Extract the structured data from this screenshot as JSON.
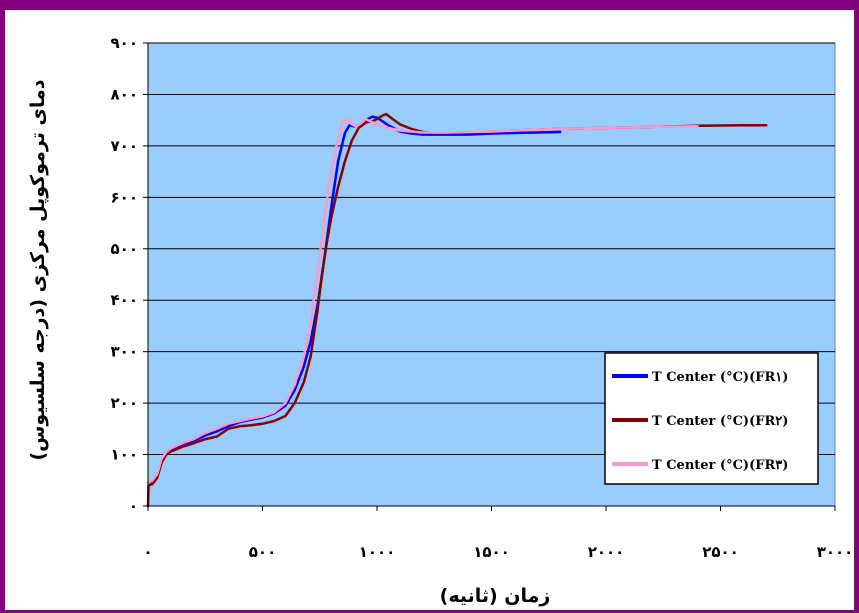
{
  "chart_data": {
    "type": "line",
    "xlabel": "زمان (ثانیه)",
    "ylabel": "دمای ترموکوپل مرکزی (درجه سلسیوس)",
    "xlim": [
      0,
      3000
    ],
    "ylim": [
      0,
      900
    ],
    "x_ticks": [
      0,
      500,
      1000,
      1500,
      2000,
      2500,
      3000
    ],
    "y_ticks": [
      0,
      100,
      200,
      300,
      400,
      500,
      600,
      700,
      800,
      900
    ],
    "x_tick_labels": [
      "۰",
      "۵۰۰",
      "۱۰۰۰",
      "۱۵۰۰",
      "۲۰۰۰",
      "۲۵۰۰",
      "۳۰۰۰"
    ],
    "y_tick_labels": [
      "۰",
      "۱۰۰",
      "۲۰۰",
      "۳۰۰",
      "۴۰۰",
      "۵۰۰",
      "۶۰۰",
      "۷۰۰",
      "۸۰۰",
      "۹۰۰"
    ],
    "grid": "horizontal",
    "legend_position": "bottom-right",
    "plot_background": "#99CCFF",
    "series": [
      {
        "name": "T Center (°C)(FR۱)",
        "color": "#0000FF",
        "x": [
          0,
          20,
          40,
          60,
          80,
          100,
          150,
          200,
          250,
          300,
          350,
          400,
          450,
          500,
          550,
          600,
          640,
          680,
          710,
          740,
          770,
          800,
          830,
          860,
          880,
          900,
          920,
          940,
          960,
          980,
          1000,
          1050,
          1100,
          1150,
          1200,
          1300,
          1400,
          1500,
          1600,
          1800
        ],
        "y": [
          45,
          48,
          60,
          90,
          105,
          110,
          120,
          127,
          137,
          145,
          155,
          163,
          168,
          172,
          180,
          195,
          225,
          270,
          320,
          390,
          480,
          580,
          670,
          725,
          740,
          738,
          740,
          745,
          752,
          757,
          755,
          740,
          728,
          724,
          722,
          722,
          722,
          724,
          725,
          727
        ]
      },
      {
        "name": "T Center (°C)(FR۲)",
        "color": "#800000",
        "x": [
          0,
          2,
          20,
          40,
          60,
          80,
          100,
          150,
          200,
          250,
          300,
          350,
          400,
          450,
          500,
          550,
          600,
          640,
          680,
          710,
          740,
          760,
          780,
          800,
          830,
          860,
          890,
          920,
          950,
          980,
          1000,
          1020,
          1040,
          1060,
          1100,
          1150,
          1200,
          1250,
          1300,
          1400,
          1500,
          1600,
          1800,
          2000,
          2200,
          2400,
          2600,
          2700
        ],
        "y": [
          0,
          40,
          43,
          55,
          85,
          100,
          106,
          115,
          122,
          130,
          135,
          150,
          155,
          157,
          160,
          165,
          175,
          200,
          240,
          290,
          380,
          450,
          510,
          560,
          620,
          670,
          710,
          735,
          745,
          748,
          752,
          758,
          762,
          755,
          742,
          733,
          727,
          725,
          725,
          726,
          728,
          730,
          733,
          735,
          737,
          739,
          740,
          740
        ]
      },
      {
        "name": "T Center (°C)(FR۳)",
        "color": "#FF99CC",
        "x": [
          0,
          20,
          40,
          60,
          80,
          100,
          150,
          200,
          250,
          300,
          350,
          400,
          450,
          500,
          550,
          600,
          640,
          680,
          710,
          740,
          770,
          800,
          830,
          850,
          870,
          890,
          910,
          930,
          950,
          970,
          990,
          1010,
          1050,
          1100,
          1150,
          1200,
          1300,
          1400,
          1500,
          1600,
          1800,
          2000,
          2200,
          2400
        ],
        "y": [
          45,
          50,
          62,
          92,
          105,
          112,
          122,
          130,
          142,
          150,
          160,
          165,
          170,
          174,
          182,
          200,
          235,
          290,
          360,
          450,
          560,
          650,
          715,
          748,
          752,
          742,
          738,
          744,
          752,
          748,
          744,
          740,
          735,
          730,
          728,
          726,
          726,
          727,
          728,
          730,
          733,
          735,
          737,
          738
        ]
      }
    ]
  }
}
